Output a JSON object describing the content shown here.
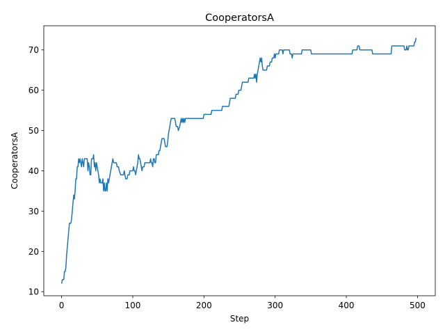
{
  "chart_data": {
    "type": "line",
    "title": "CooperatorsA",
    "xlabel": "Step",
    "ylabel": "CooperatorsA",
    "xlim": [
      -25,
      525
    ],
    "ylim": [
      9,
      76
    ],
    "xticks": [
      0,
      100,
      200,
      300,
      400,
      500
    ],
    "yticks": [
      10,
      20,
      30,
      40,
      50,
      60,
      70
    ],
    "grid": false,
    "legend": "none",
    "series": [
      {
        "color": "#1f77b4",
        "points": [
          [
            0,
            12
          ],
          [
            1,
            13
          ],
          [
            3,
            13
          ],
          [
            4,
            15
          ],
          [
            5,
            15
          ],
          [
            6,
            16
          ],
          [
            7,
            19
          ],
          [
            8,
            21
          ],
          [
            9,
            23
          ],
          [
            10,
            25
          ],
          [
            11,
            27
          ],
          [
            13,
            27
          ],
          [
            14,
            28
          ],
          [
            15,
            30
          ],
          [
            16,
            32
          ],
          [
            17,
            34
          ],
          [
            18,
            33
          ],
          [
            19,
            35
          ],
          [
            20,
            38
          ],
          [
            21,
            38
          ],
          [
            22,
            41
          ],
          [
            23,
            41
          ],
          [
            24,
            43
          ],
          [
            25,
            42
          ],
          [
            26,
            43
          ],
          [
            27,
            42
          ],
          [
            28,
            41
          ],
          [
            29,
            43
          ],
          [
            30,
            42
          ],
          [
            31,
            41
          ],
          [
            32,
            43
          ],
          [
            33,
            43
          ],
          [
            36,
            43
          ],
          [
            37,
            40
          ],
          [
            38,
            42
          ],
          [
            39,
            41
          ],
          [
            40,
            39
          ],
          [
            41,
            39
          ],
          [
            42,
            43
          ],
          [
            43,
            43
          ],
          [
            44,
            43
          ],
          [
            45,
            44
          ],
          [
            46,
            41
          ],
          [
            47,
            42
          ],
          [
            48,
            40
          ],
          [
            49,
            42
          ],
          [
            50,
            41
          ],
          [
            51,
            40
          ],
          [
            52,
            39
          ],
          [
            53,
            37
          ],
          [
            54,
            38
          ],
          [
            55,
            37
          ],
          [
            56,
            37
          ],
          [
            57,
            37
          ],
          [
            58,
            38
          ],
          [
            59,
            35
          ],
          [
            60,
            37
          ],
          [
            61,
            35
          ],
          [
            62,
            35
          ],
          [
            63,
            37
          ],
          [
            64,
            35
          ],
          [
            65,
            38
          ],
          [
            66,
            37
          ],
          [
            67,
            38
          ],
          [
            68,
            39
          ],
          [
            69,
            40
          ],
          [
            70,
            41
          ],
          [
            71,
            42
          ],
          [
            72,
            43
          ],
          [
            73,
            42
          ],
          [
            77,
            42
          ],
          [
            78,
            41
          ],
          [
            80,
            41
          ],
          [
            81,
            40
          ],
          [
            83,
            39
          ],
          [
            87,
            39
          ],
          [
            88,
            40
          ],
          [
            89,
            39
          ],
          [
            90,
            38
          ],
          [
            92,
            38
          ],
          [
            93,
            39
          ],
          [
            95,
            39
          ],
          [
            96,
            40
          ],
          [
            100,
            40
          ],
          [
            101,
            41
          ],
          [
            102,
            40
          ],
          [
            103,
            40
          ],
          [
            104,
            39
          ],
          [
            105,
            40
          ],
          [
            106,
            41
          ],
          [
            107,
            42
          ],
          [
            108,
            44
          ],
          [
            109,
            43
          ],
          [
            110,
            43
          ],
          [
            111,
            42
          ],
          [
            112,
            41
          ],
          [
            113,
            40
          ],
          [
            114,
            41
          ],
          [
            116,
            41
          ],
          [
            117,
            42
          ],
          [
            124,
            42
          ],
          [
            125,
            43
          ],
          [
            126,
            42
          ],
          [
            127,
            42
          ],
          [
            128,
            41
          ],
          [
            129,
            43
          ],
          [
            130,
            43
          ],
          [
            131,
            42
          ],
          [
            132,
            42
          ],
          [
            133,
            44
          ],
          [
            136,
            44
          ],
          [
            137,
            45
          ],
          [
            138,
            45
          ],
          [
            139,
            46
          ],
          [
            140,
            47
          ],
          [
            141,
            48
          ],
          [
            144,
            48
          ],
          [
            145,
            47
          ],
          [
            146,
            46
          ],
          [
            148,
            46
          ],
          [
            149,
            47
          ],
          [
            150,
            49
          ],
          [
            151,
            50
          ],
          [
            152,
            51
          ],
          [
            153,
            52
          ],
          [
            154,
            53
          ],
          [
            159,
            53
          ],
          [
            160,
            52
          ],
          [
            161,
            51
          ],
          [
            163,
            51
          ],
          [
            164,
            50
          ],
          [
            166,
            51
          ],
          [
            167,
            52
          ],
          [
            168,
            53
          ],
          [
            169,
            52
          ],
          [
            170,
            53
          ],
          [
            171,
            52
          ],
          [
            172,
            53
          ],
          [
            173,
            52
          ],
          [
            174,
            53
          ],
          [
            199,
            53
          ],
          [
            200,
            54
          ],
          [
            210,
            54
          ],
          [
            211,
            55
          ],
          [
            225,
            55
          ],
          [
            226,
            56
          ],
          [
            235,
            56
          ],
          [
            236,
            57
          ],
          [
            237,
            58
          ],
          [
            244,
            58
          ],
          [
            245,
            59
          ],
          [
            248,
            59
          ],
          [
            249,
            60
          ],
          [
            252,
            60
          ],
          [
            253,
            61
          ],
          [
            254,
            62
          ],
          [
            262,
            62
          ],
          [
            263,
            63
          ],
          [
            270,
            63
          ],
          [
            271,
            64
          ],
          [
            272,
            63
          ],
          [
            273,
            64
          ],
          [
            274,
            62
          ],
          [
            275,
            64
          ],
          [
            276,
            65
          ],
          [
            277,
            66
          ],
          [
            278,
            67
          ],
          [
            279,
            68
          ],
          [
            280,
            67
          ],
          [
            281,
            68
          ],
          [
            282,
            66
          ],
          [
            283,
            65
          ],
          [
            288,
            65
          ],
          [
            289,
            66
          ],
          [
            292,
            66
          ],
          [
            293,
            67
          ],
          [
            295,
            67
          ],
          [
            296,
            68
          ],
          [
            298,
            68
          ],
          [
            299,
            69
          ],
          [
            300,
            68
          ],
          [
            301,
            69
          ],
          [
            305,
            69
          ],
          [
            306,
            70
          ],
          [
            310,
            70
          ],
          [
            311,
            69
          ],
          [
            312,
            70
          ],
          [
            320,
            70
          ],
          [
            321,
            69
          ],
          [
            323,
            69
          ],
          [
            324,
            68
          ],
          [
            325,
            69
          ],
          [
            337,
            69
          ],
          [
            338,
            70
          ],
          [
            350,
            70
          ],
          [
            351,
            69
          ],
          [
            408,
            69
          ],
          [
            409,
            70
          ],
          [
            415,
            70
          ],
          [
            416,
            71
          ],
          [
            418,
            71
          ],
          [
            419,
            70
          ],
          [
            436,
            70
          ],
          [
            437,
            69
          ],
          [
            463,
            69
          ],
          [
            464,
            71
          ],
          [
            481,
            71
          ],
          [
            482,
            70
          ],
          [
            484,
            70
          ],
          [
            485,
            71
          ],
          [
            486,
            70
          ],
          [
            487,
            70
          ],
          [
            488,
            71
          ],
          [
            495,
            71
          ],
          [
            496,
            72
          ],
          [
            497,
            72
          ],
          [
            498,
            73
          ]
        ]
      }
    ]
  }
}
